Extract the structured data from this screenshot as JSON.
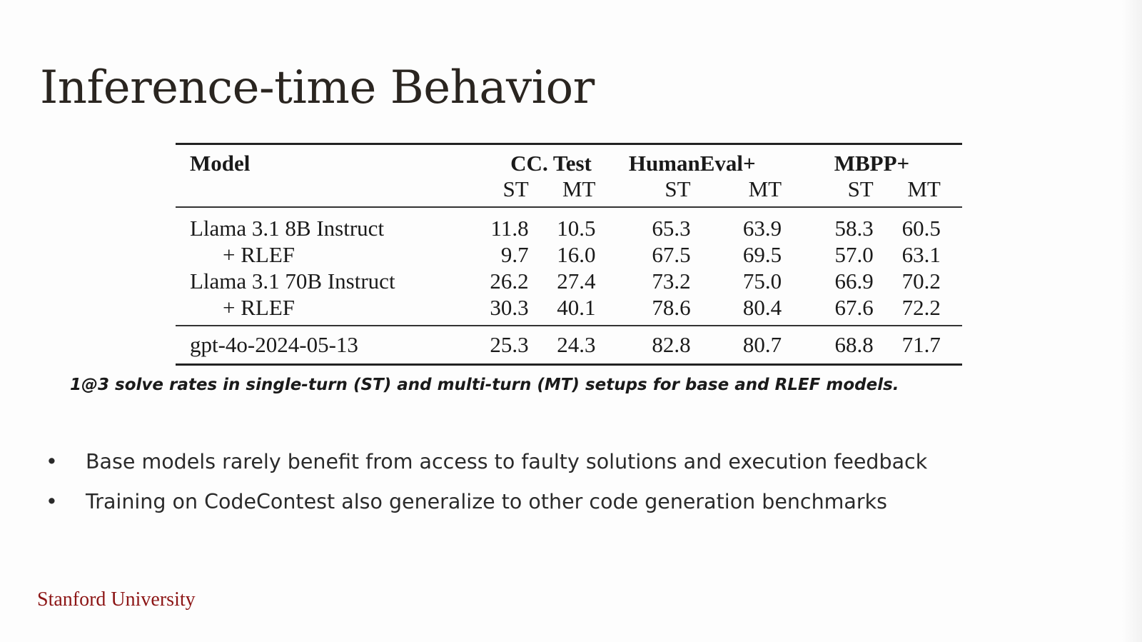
{
  "slide": {
    "title": "Inference-time Behavior",
    "caption": "1@3 solve rates in single-turn (ST) and multi-turn (MT) setups for base and RLEF models.",
    "bullets": [
      "Base models rarely benefit from access to faulty solutions and execution feedback",
      "Training on CodeContest also generalize to other code generation benchmarks"
    ],
    "bullet_glyph": "•",
    "footer": "Stanford University",
    "brand_color": "#8c1515"
  },
  "table": {
    "model_header": "Model",
    "groups": [
      "CC. Test",
      "HumanEval+",
      "MBPP+"
    ],
    "subheaders": [
      "ST",
      "MT",
      "ST",
      "MT",
      "ST",
      "MT"
    ],
    "rows": [
      {
        "model": "Llama 3.1 8B Instruct",
        "values": [
          "11.8",
          "10.5",
          "65.3",
          "63.9",
          "58.3",
          "60.5"
        ]
      },
      {
        "model": "+ RLEF",
        "values": [
          "9.7",
          "16.0",
          "67.5",
          "69.5",
          "57.0",
          "63.1"
        ]
      },
      {
        "model": "Llama 3.1 70B Instruct",
        "values": [
          "26.2",
          "27.4",
          "73.2",
          "75.0",
          "66.9",
          "70.2"
        ]
      },
      {
        "model": "+ RLEF",
        "values": [
          "30.3",
          "40.1",
          "78.6",
          "80.4",
          "67.6",
          "72.2"
        ]
      }
    ],
    "reference_row": {
      "model": "gpt-4o-2024-05-13",
      "values": [
        "25.3",
        "24.3",
        "82.8",
        "80.7",
        "68.8",
        "71.7"
      ]
    }
  }
}
